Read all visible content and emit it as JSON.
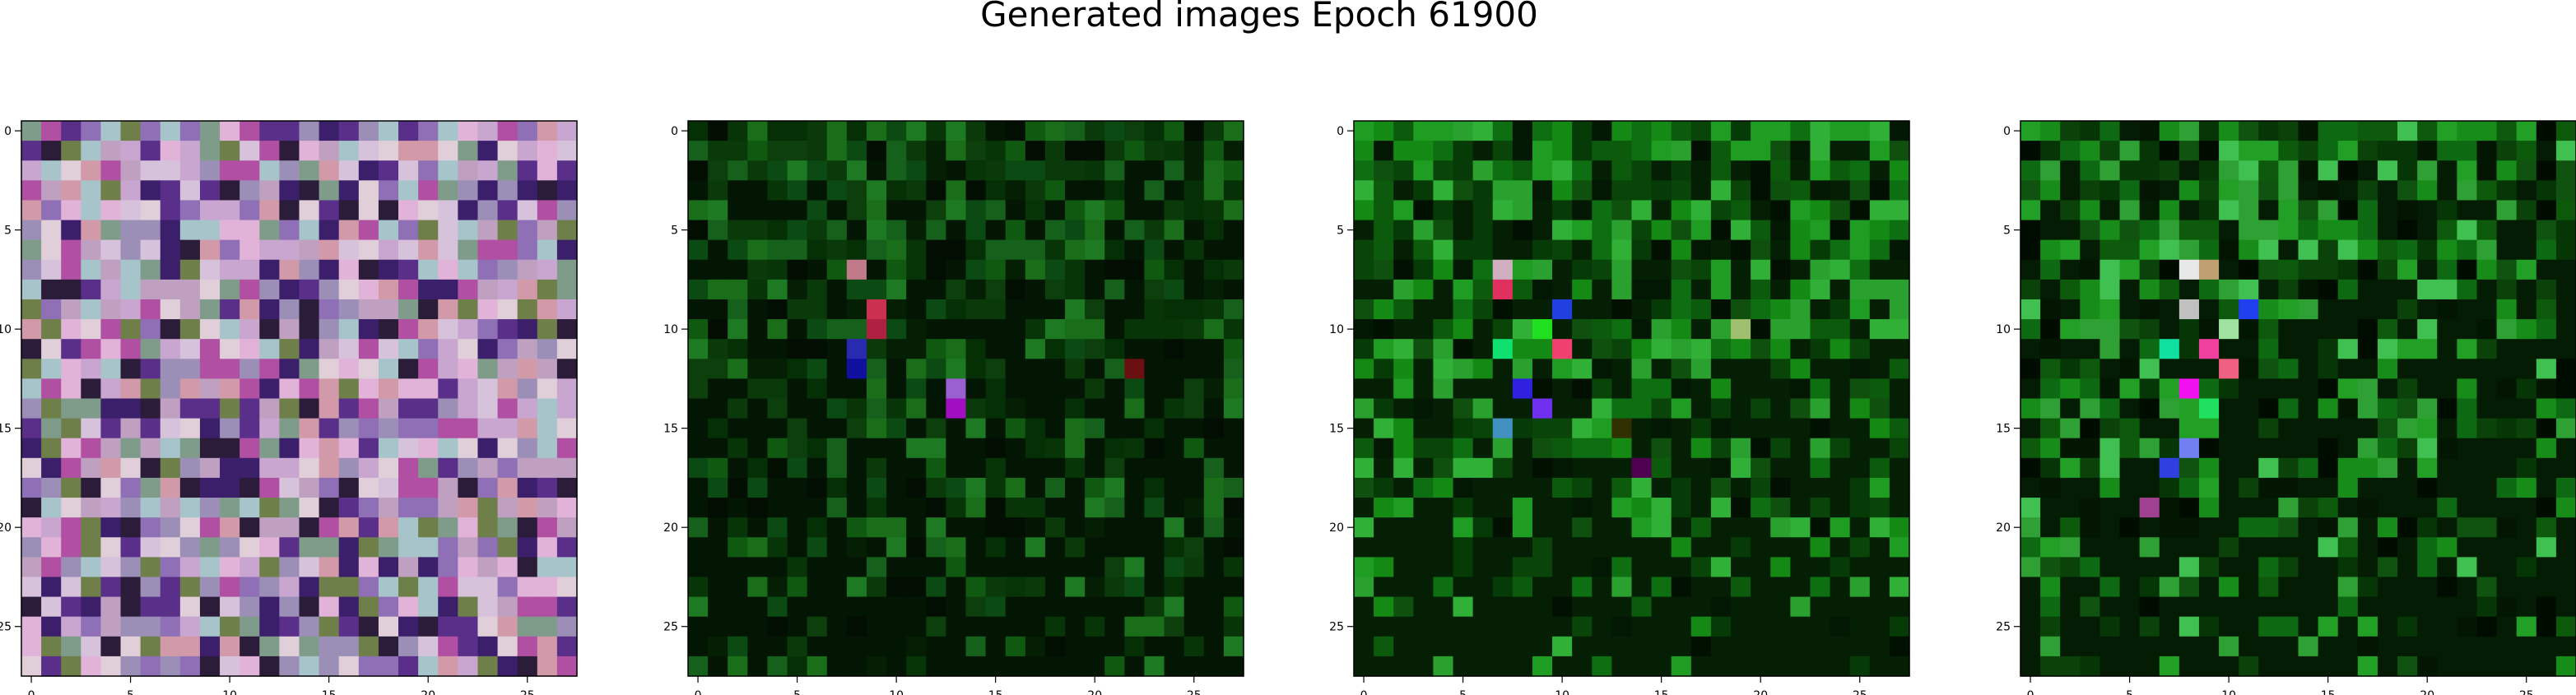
{
  "figure": {
    "title": "Generated images Epoch 61900"
  },
  "chart_data": [
    {
      "type": "heatmap",
      "image_rows": 28,
      "image_cols": 28,
      "xticks": [
        0,
        5,
        10,
        15,
        20,
        25
      ],
      "yticks": [
        0,
        5,
        10,
        15,
        20,
        25
      ],
      "palette": [
        "#c9a6cf",
        "#8f6fb5",
        "#d7c2dc",
        "#7f9c8a",
        "#b14fa3",
        "#5a2f8a",
        "#e0cfd8",
        "#9b8fb8",
        "#d29aa8",
        "#3b1f6b",
        "#a6c4c9",
        "#e2b3d8",
        "#6e7f4a",
        "#2b1d3a",
        "#bfa0c0"
      ],
      "seed": 11
    },
    {
      "type": "heatmap",
      "image_rows": 28,
      "image_cols": 28,
      "xticks": [
        0,
        5,
        10,
        15,
        20,
        25
      ],
      "yticks": [
        0,
        5,
        10,
        15,
        20,
        25
      ],
      "palette": [
        "#0a3a0a",
        "#0f5a10",
        "#053005",
        "#1a6e1a",
        "#041f04",
        "#0b4a12",
        "#020e02",
        "#15601a",
        "#083508",
        "#1e7a22",
        "#031503",
        "#0d3f0d"
      ],
      "accents": [
        [
          7,
          8,
          "#c07a8a"
        ],
        [
          9,
          9,
          "#cc3050"
        ],
        [
          10,
          9,
          "#b02040"
        ],
        [
          11,
          8,
          "#2a2ab0"
        ],
        [
          12,
          8,
          "#1010a0"
        ],
        [
          13,
          13,
          "#9a60d0"
        ],
        [
          14,
          13,
          "#a010c0"
        ],
        [
          12,
          22,
          "#6a1010"
        ]
      ],
      "seed": 23
    },
    {
      "type": "heatmap",
      "image_rows": 28,
      "image_cols": 28,
      "xticks": [
        0,
        5,
        10,
        15,
        20,
        25
      ],
      "yticks": [
        0,
        5,
        10,
        15,
        20,
        25
      ],
      "palette": [
        "#0c5a0c",
        "#148a14",
        "#063a06",
        "#1f9c22",
        "#021802",
        "#0d6e12",
        "#011001",
        "#2aa02e",
        "#094409",
        "#30b036",
        "#041f04",
        "#0f500f"
      ],
      "accents": [
        [
          7,
          7,
          "#d0b0c0"
        ],
        [
          8,
          7,
          "#e03060"
        ],
        [
          9,
          10,
          "#2040e0"
        ],
        [
          10,
          9,
          "#20e020"
        ],
        [
          11,
          10,
          "#f04070"
        ],
        [
          11,
          7,
          "#10e070"
        ],
        [
          13,
          8,
          "#3020e0"
        ],
        [
          14,
          9,
          "#7030f0"
        ],
        [
          15,
          7,
          "#4090c0"
        ],
        [
          15,
          13,
          "#303000"
        ],
        [
          17,
          14,
          "#500050"
        ],
        [
          10,
          19,
          "#a0c070"
        ]
      ],
      "seed": 37
    },
    {
      "type": "heatmap",
      "image_rows": 28,
      "image_cols": 28,
      "xticks": [
        0,
        5,
        10,
        15,
        20,
        25
      ],
      "yticks": [
        0,
        5,
        10,
        15,
        20,
        25
      ],
      "palette": [
        "#0d5a0d",
        "#178c18",
        "#063606",
        "#22a026",
        "#021602",
        "#0e6a12",
        "#010c01",
        "#40c050",
        "#0a420a",
        "#2fa033",
        "#031c03",
        "#10520f"
      ],
      "accents": [
        [
          7,
          8,
          "#e8e8e8"
        ],
        [
          7,
          9,
          "#c0a070"
        ],
        [
          9,
          8,
          "#c0c0c0"
        ],
        [
          9,
          11,
          "#2040f0"
        ],
        [
          10,
          10,
          "#a0e0a0"
        ],
        [
          11,
          9,
          "#f040a0"
        ],
        [
          11,
          7,
          "#10e0a0"
        ],
        [
          12,
          10,
          "#f06080"
        ],
        [
          13,
          8,
          "#f010f0"
        ],
        [
          14,
          9,
          "#20e060"
        ],
        [
          16,
          8,
          "#7080f0"
        ],
        [
          17,
          7,
          "#3040e0"
        ],
        [
          19,
          6,
          "#a04090"
        ]
      ],
      "seed": 53
    }
  ]
}
